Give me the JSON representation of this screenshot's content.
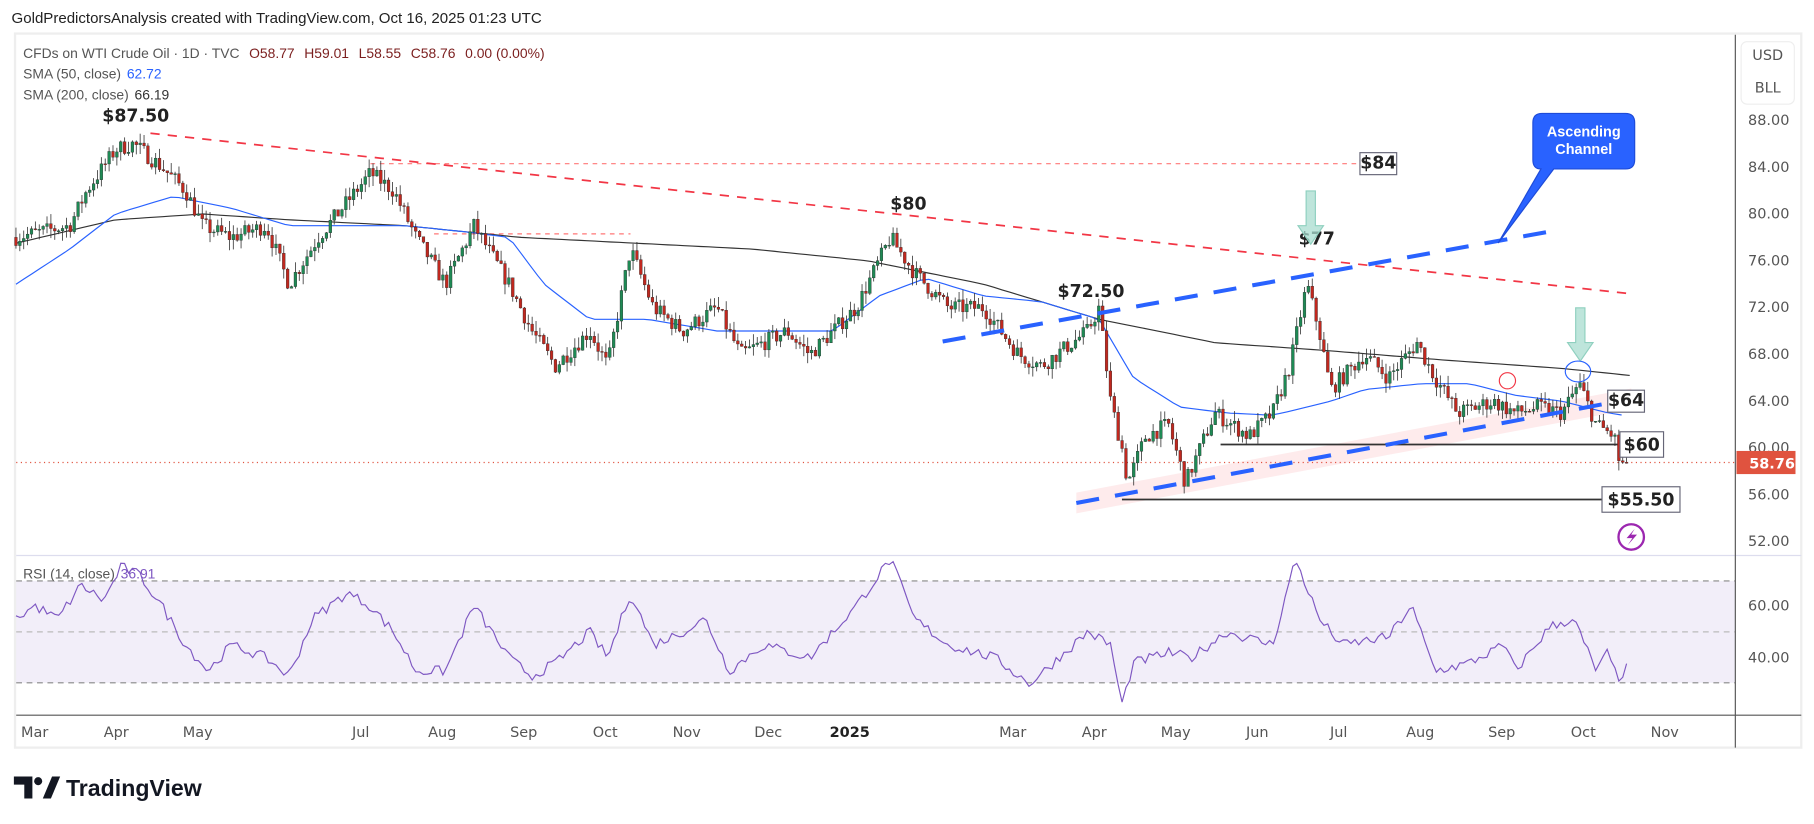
{
  "header": {
    "credit": "GoldPredictorsAnalysis created with TradingView.com, Oct 16, 2025 01:23 UTC"
  },
  "legend": {
    "symbol": "CFDs on WTI Crude Oil · 1D · TVC",
    "open": "O58.77",
    "high": "H59.01",
    "low": "L58.55",
    "close": "C58.76",
    "change": "0.00 (0.00%)",
    "sma50_label": "SMA (50, close)",
    "sma50_value": "62.72",
    "sma200_label": "SMA (200, close)",
    "sma200_value": "66.19",
    "rsi_label": "RSI (14, close)",
    "rsi_value": "36.91"
  },
  "currency": {
    "line1": "USD",
    "line2": "BLL"
  },
  "last_price_label": "58.76",
  "branding": {
    "name": "TradingView"
  },
  "colors": {
    "up": "#1f8a55",
    "down": "#c0281f",
    "sma50": "#2962ff",
    "sma200": "#333333",
    "rsi": "#7e57c2",
    "trend": "#f23645",
    "channel": "#2962ff",
    "last": "#e0533f"
  },
  "chart_data": {
    "type": "candlestick",
    "title": "CFDs on WTI Crude Oil · 1D · TVC",
    "x_unit": "months since Mar 2024",
    "price_axis": {
      "ticks": [
        "88.00",
        "84.00",
        "80.00",
        "76.00",
        "72.00",
        "68.00",
        "64.00",
        "60.00",
        "56.00",
        "52.00"
      ],
      "ylim": [
        52,
        88
      ]
    },
    "rsi_axis": {
      "ticks": [
        "60.00",
        "40.00"
      ],
      "band": [
        30,
        70
      ]
    },
    "time_axis": {
      "ticks": [
        {
          "m": 0,
          "label": "Mar"
        },
        {
          "m": 1,
          "label": "Apr"
        },
        {
          "m": 2,
          "label": "May"
        },
        {
          "m": 4,
          "label": "Jul"
        },
        {
          "m": 5,
          "label": "Aug"
        },
        {
          "m": 6,
          "label": "Sep"
        },
        {
          "m": 7,
          "label": "Oct"
        },
        {
          "m": 8,
          "label": "Nov"
        },
        {
          "m": 9,
          "label": "Dec"
        },
        {
          "m": 10,
          "label": "2025",
          "bold": true
        },
        {
          "m": 12,
          "label": "Mar"
        },
        {
          "m": 13,
          "label": "Apr"
        },
        {
          "m": 14,
          "label": "May"
        },
        {
          "m": 15,
          "label": "Jun"
        },
        {
          "m": 16,
          "label": "Jul"
        },
        {
          "m": 17,
          "label": "Aug"
        },
        {
          "m": 18,
          "label": "Sep"
        },
        {
          "m": 19,
          "label": "Oct"
        },
        {
          "m": 20,
          "label": "Nov"
        }
      ]
    },
    "price_path": [
      [
        -0.23,
        78
      ],
      [
        0.43,
        79
      ],
      [
        0.64,
        82
      ],
      [
        0.99,
        85.5
      ],
      [
        1.21,
        86
      ],
      [
        1.56,
        84
      ],
      [
        1.85,
        82
      ],
      [
        2.06,
        79
      ],
      [
        2.41,
        78
      ],
      [
        2.84,
        79
      ],
      [
        3.12,
        74
      ],
      [
        3.48,
        78
      ],
      [
        3.83,
        81
      ],
      [
        4.12,
        83.5
      ],
      [
        4.4,
        82
      ],
      [
        4.68,
        78
      ],
      [
        5.04,
        74
      ],
      [
        5.39,
        79
      ],
      [
        5.82,
        74
      ],
      [
        6.1,
        70
      ],
      [
        6.39,
        67
      ],
      [
        6.81,
        70
      ],
      [
        7.03,
        67
      ],
      [
        7.31,
        77
      ],
      [
        7.59,
        72
      ],
      [
        7.95,
        70
      ],
      [
        8.37,
        72
      ],
      [
        8.66,
        68
      ],
      [
        9.23,
        70
      ],
      [
        9.51,
        68
      ],
      [
        10.08,
        72
      ],
      [
        10.5,
        78
      ],
      [
        10.79,
        75
      ],
      [
        11.21,
        72
      ],
      [
        11.64,
        72
      ],
      [
        12.07,
        68
      ],
      [
        12.35,
        67
      ],
      [
        12.92,
        70
      ],
      [
        13.06,
        72
      ],
      [
        13.2,
        64
      ],
      [
        13.34,
        60
      ],
      [
        13.41,
        57
      ],
      [
        13.63,
        61
      ],
      [
        13.91,
        62
      ],
      [
        14.12,
        57
      ],
      [
        14.48,
        63
      ],
      [
        14.9,
        61
      ],
      [
        15.19,
        63
      ],
      [
        15.4,
        67
      ],
      [
        15.61,
        74
      ],
      [
        15.76,
        70
      ],
      [
        15.9,
        65
      ],
      [
        16.32,
        68
      ],
      [
        16.61,
        66
      ],
      [
        16.96,
        69
      ],
      [
        17.18,
        66
      ],
      [
        17.46,
        63
      ],
      [
        17.89,
        64
      ],
      [
        18.17,
        63
      ],
      [
        18.45,
        63.5
      ],
      [
        18.74,
        63
      ],
      [
        18.95,
        65.5
      ],
      [
        19.16,
        62
      ],
      [
        19.38,
        61
      ],
      [
        19.45,
        58.5
      ],
      [
        19.56,
        58.76
      ]
    ],
    "sma50": [
      [
        -0.23,
        74
      ],
      [
        0.43,
        77
      ],
      [
        0.99,
        80
      ],
      [
        1.7,
        81.5
      ],
      [
        2.41,
        80.5
      ],
      [
        3.12,
        79
      ],
      [
        3.83,
        79
      ],
      [
        4.54,
        79
      ],
      [
        5.25,
        78.5
      ],
      [
        5.82,
        78
      ],
      [
        6.25,
        74
      ],
      [
        6.81,
        71
      ],
      [
        7.52,
        71
      ],
      [
        8.37,
        70
      ],
      [
        9.23,
        70
      ],
      [
        9.79,
        70
      ],
      [
        10.36,
        73
      ],
      [
        10.93,
        74.5
      ],
      [
        11.64,
        73
      ],
      [
        12.35,
        72.5
      ],
      [
        13.06,
        71
      ],
      [
        13.48,
        66
      ],
      [
        14.05,
        63.5
      ],
      [
        14.62,
        63
      ],
      [
        15.19,
        62.8
      ],
      [
        15.61,
        63.5
      ],
      [
        15.9,
        64
      ],
      [
        16.32,
        65
      ],
      [
        17.03,
        65.5
      ],
      [
        17.6,
        65.5
      ],
      [
        18.17,
        64.5
      ],
      [
        18.74,
        64
      ],
      [
        19.3,
        63
      ],
      [
        19.56,
        62.72
      ]
    ],
    "sma200": [
      [
        -0.23,
        77.5
      ],
      [
        0.99,
        79.5
      ],
      [
        2.06,
        80
      ],
      [
        3.12,
        79.5
      ],
      [
        4.54,
        79
      ],
      [
        5.96,
        78
      ],
      [
        7.38,
        77.5
      ],
      [
        8.8,
        77
      ],
      [
        10.22,
        76
      ],
      [
        11.64,
        74
      ],
      [
        13.06,
        71
      ],
      [
        14.48,
        69
      ],
      [
        15.9,
        68.3
      ],
      [
        17.32,
        67.5
      ],
      [
        18.74,
        66.8
      ],
      [
        19.59,
        66.19
      ]
    ],
    "rsi": [
      [
        -0.23,
        55
      ],
      [
        0,
        60
      ],
      [
        0.28,
        55
      ],
      [
        0.57,
        68
      ],
      [
        0.85,
        62
      ],
      [
        1.06,
        75
      ],
      [
        1.28,
        72
      ],
      [
        1.56,
        60
      ],
      [
        1.85,
        45
      ],
      [
        2.13,
        35
      ],
      [
        2.41,
        45
      ],
      [
        2.84,
        40
      ],
      [
        3.12,
        33
      ],
      [
        3.41,
        55
      ],
      [
        3.83,
        65
      ],
      [
        4.12,
        60
      ],
      [
        4.4,
        50
      ],
      [
        4.68,
        35
      ],
      [
        5.04,
        35
      ],
      [
        5.39,
        60
      ],
      [
        5.82,
        40
      ],
      [
        6.1,
        33
      ],
      [
        6.39,
        38
      ],
      [
        6.81,
        50
      ],
      [
        7.03,
        40
      ],
      [
        7.31,
        65
      ],
      [
        7.59,
        45
      ],
      [
        7.95,
        50
      ],
      [
        8.23,
        55
      ],
      [
        8.52,
        35
      ],
      [
        8.94,
        45
      ],
      [
        9.51,
        40
      ],
      [
        10.08,
        60
      ],
      [
        10.5,
        78
      ],
      [
        10.79,
        55
      ],
      [
        11.21,
        45
      ],
      [
        11.78,
        40
      ],
      [
        12.21,
        30
      ],
      [
        12.92,
        50
      ],
      [
        13.2,
        45
      ],
      [
        13.34,
        22
      ],
      [
        13.48,
        38
      ],
      [
        13.91,
        42
      ],
      [
        14.19,
        40
      ],
      [
        14.62,
        50
      ],
      [
        15.19,
        45
      ],
      [
        15.47,
        78
      ],
      [
        15.76,
        55
      ],
      [
        16.04,
        45
      ],
      [
        16.61,
        48
      ],
      [
        16.89,
        60
      ],
      [
        17.18,
        35
      ],
      [
        17.6,
        38
      ],
      [
        18.03,
        45
      ],
      [
        18.17,
        35
      ],
      [
        18.59,
        52
      ],
      [
        18.88,
        55
      ],
      [
        19.16,
        35
      ],
      [
        19.3,
        42
      ],
      [
        19.42,
        32
      ],
      [
        19.56,
        36.91
      ]
    ],
    "last_price": 58.76,
    "annotations": {
      "downtrend": [
        [
          1.42,
          86.9
        ],
        [
          19.56,
          73.2
        ]
      ],
      "resistance_84": {
        "from": 4.12,
        "to": 16.26,
        "price": 84.3,
        "label": "$84"
      },
      "resistance_78": {
        "from": 4.9,
        "to": 7.31,
        "price": 78.3
      },
      "channel_upper": [
        [
          11.14,
          69.1
        ],
        [
          18.59,
          78.5
        ]
      ],
      "channel_lower": [
        [
          12.78,
          55.3
        ],
        [
          19.59,
          64.2
        ]
      ],
      "support_60": {
        "from": 14.55,
        "to": 19.45,
        "price": 60.3,
        "label": "$60"
      },
      "support_55": {
        "from": 13.34,
        "to": 19.23,
        "price": 55.6,
        "label": "$55.50"
      },
      "label_64": {
        "m": 19.3,
        "price": 64.0,
        "label": "$64"
      },
      "peaks": [
        {
          "m": 1.24,
          "price": 87.5,
          "label": "$87.50"
        },
        {
          "m": 10.72,
          "price": 80,
          "label": "$80"
        },
        {
          "m": 12.96,
          "price": 72.5,
          "label": "$72.50"
        },
        {
          "m": 15.73,
          "price": 77,
          "label": "$77"
        }
      ],
      "callout": "Ascending Channel"
    }
  }
}
